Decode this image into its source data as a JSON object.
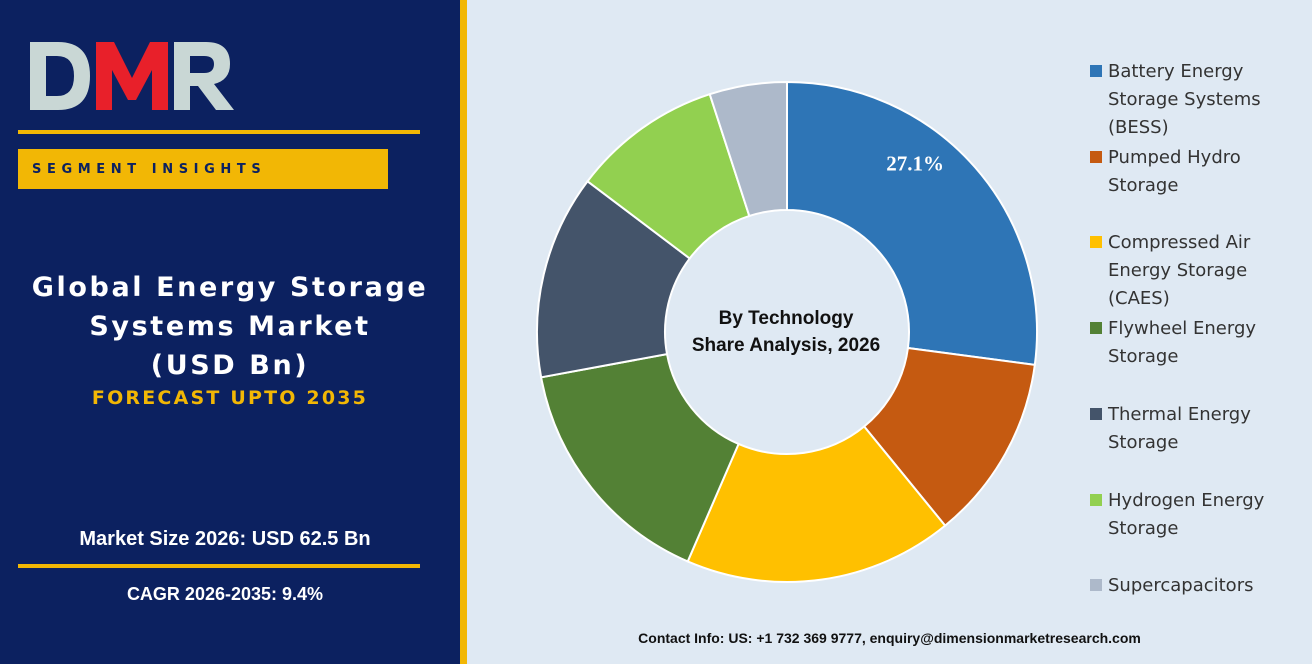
{
  "brand": {
    "logo_text": "DMR",
    "colors": {
      "navy": "#0c2160",
      "gold": "#f2b705",
      "logo_red": "#e8202a",
      "logo_grey": "#c9d7d5",
      "panel_bg": "#dfe9f3"
    }
  },
  "left_panel": {
    "segment_label": "SEGMENT INSIGHTS",
    "title_lines": [
      "Global Energy Storage",
      "Systems Market",
      "(USD Bn)"
    ],
    "forecast": "FORECAST UPTO 2035",
    "market_size": "Market Size 2026: USD 62.5 Bn",
    "cagr": "CAGR 2026-2035: 9.4%"
  },
  "chart_data": {
    "type": "pie",
    "donut": true,
    "center_label": [
      "By Technology",
      "Share Analysis, 2026"
    ],
    "legend_position": "right",
    "slices": [
      {
        "name": "Battery Energy Storage Systems (BESS)",
        "legend_lines": [
          "Battery Energy",
          "Storage Systems",
          "(BESS)"
        ],
        "value": 27.1,
        "color": "#2e75b6",
        "label": "27.1%"
      },
      {
        "name": "Pumped Hydro Storage",
        "legend_lines": [
          "Pumped Hydro",
          "Storage"
        ],
        "value": 12.0,
        "color": "#c55a11",
        "label": ""
      },
      {
        "name": "Compressed Air Energy Storage (CAES)",
        "legend_lines": [
          "Compressed Air",
          "Energy Storage",
          "(CAES)"
        ],
        "value": 17.4,
        "color": "#ffc000",
        "label": ""
      },
      {
        "name": "Flywheel Energy Storage",
        "legend_lines": [
          "Flywheel Energy",
          "Storage"
        ],
        "value": 15.6,
        "color": "#538135",
        "label": ""
      },
      {
        "name": "Thermal Energy Storage",
        "legend_lines": [
          "Thermal Energy",
          "Storage"
        ],
        "value": 13.2,
        "color": "#44546a",
        "label": ""
      },
      {
        "name": "Hydrogen Energy Storage",
        "legend_lines": [
          "Hydrogen Energy",
          "Storage"
        ],
        "value": 9.7,
        "color": "#92d050",
        "label": ""
      },
      {
        "name": "Supercapacitors",
        "legend_lines": [
          "Supercapacitors"
        ],
        "value": 5.0,
        "color": "#adb9ca",
        "label": ""
      }
    ]
  },
  "footer": {
    "contact": "Contact Info: US: +1 732 369 9777, enquiry@dimensionmarketresearch.com"
  }
}
